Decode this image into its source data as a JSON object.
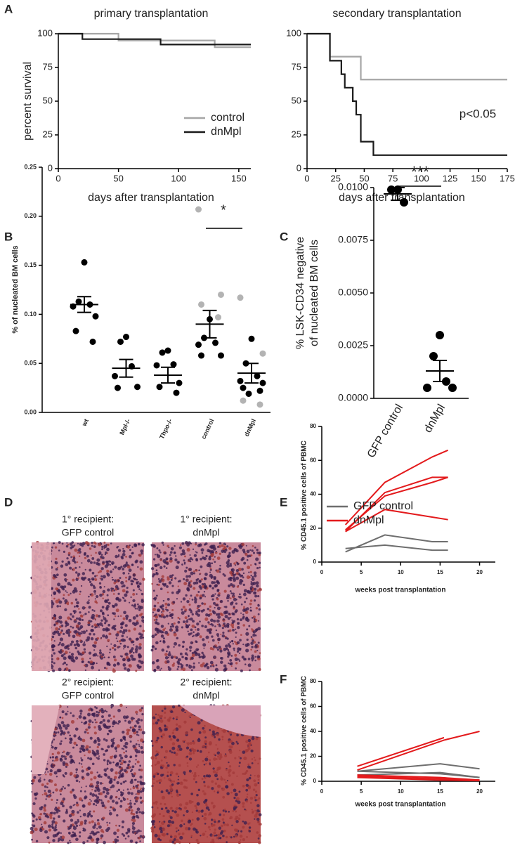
{
  "panel_labels": [
    "A",
    "B",
    "C",
    "D",
    "E",
    "F"
  ],
  "histology": {
    "captions": [
      [
        "1° recipient:",
        "GFP control"
      ],
      [
        "1° recipient:",
        "dnMpl"
      ],
      [
        "2° recipient:",
        "GFP control"
      ],
      [
        "2° recipient:",
        "dnMpl"
      ]
    ]
  },
  "chart_data": [
    {
      "type": "step",
      "title": "primary transplantation",
      "ylabel": "percent survival",
      "xlabel": "days after transplantation",
      "xlim": [
        0,
        160
      ],
      "xticks": [
        0,
        50,
        100,
        150
      ],
      "ylim": [
        0,
        100
      ],
      "yticks": [
        0,
        25,
        50,
        75,
        100
      ],
      "grid": false,
      "legend": "center right",
      "series": [
        {
          "name": "control",
          "color": "#a6a6a6",
          "x": [
            0,
            50,
            130,
            160
          ],
          "values": [
            100,
            95,
            90,
            90
          ]
        },
        {
          "name": "dnMpl",
          "color": "#1a1a1a",
          "x": [
            0,
            20,
            85,
            160
          ],
          "values": [
            100,
            96,
            92,
            92
          ]
        }
      ]
    },
    {
      "type": "step",
      "title": "secondary transplantation",
      "xlabel": "days after transplantation",
      "annotation": "p<0.05",
      "xlim": [
        0,
        175
      ],
      "xticks": [
        0,
        25,
        50,
        75,
        100,
        125,
        150,
        175
      ],
      "ylim": [
        0,
        100
      ],
      "yticks": [
        0,
        25,
        50,
        75,
        100
      ],
      "grid": false,
      "series": [
        {
          "color": "#a6a6a6",
          "x": [
            0,
            20,
            47,
            175
          ],
          "values": [
            100,
            83,
            66,
            66
          ]
        },
        {
          "color": "#1a1a1a",
          "x": [
            0,
            20,
            30,
            33,
            40,
            43,
            47,
            58,
            175
          ],
          "values": [
            100,
            80,
            70,
            60,
            50,
            40,
            20,
            10,
            10
          ]
        }
      ]
    },
    {
      "type": "dot",
      "ylabel": "% of nucleated BM cells",
      "annotation": "*",
      "categories": [
        "wt",
        "Mpl-/-",
        "Thpo-/-",
        "control",
        "dnMpl"
      ],
      "ylim": [
        0,
        0.25
      ],
      "yticks": [
        {
          "value": 0,
          "label": "0.00"
        },
        0.05,
        {
          "value": 0.1,
          "label": "0.10"
        },
        0.15,
        {
          "value": 0.2,
          "label": "0.20"
        },
        0.25
      ],
      "grid": false,
      "series": [
        {
          "color": "#000000",
          "values": [
            [
              0.153,
              0.113,
              0.11,
              0.108,
              0.098,
              0.083,
              0.072
            ],
            [
              0.077,
              0.072,
              0.047,
              0.037,
              0.026,
              0.025
            ],
            [
              0.063,
              0.061,
              0.049,
              0.048,
              0.03,
              0.026,
              0.02
            ],
            [
              0.095,
              0.076,
              0.071,
              0.069,
              0.058,
              0.058
            ],
            [
              0.075,
              0.05,
              0.037,
              0.032,
              0.03,
              0.025,
              0.022,
              0.019
            ]
          ]
        },
        {
          "color": "#b3b3b3",
          "values": [
            [],
            [],
            [],
            [
              0.207,
              0.12,
              0.11,
              0.097
            ],
            [
              0.117,
              0.06,
              0.012,
              0.008
            ]
          ]
        }
      ],
      "mean": [
        0.11,
        0.045,
        0.038,
        0.09,
        0.04
      ],
      "sem": [
        0.008,
        0.009,
        0.008,
        0.014,
        0.01
      ]
    },
    {
      "type": "dot",
      "ylabel": [
        "% LSK-CD34 negative",
        "of nucleated BM cells"
      ],
      "annotation": "***",
      "categories": [
        "GFP control",
        "dnMpl"
      ],
      "ylim": [
        0,
        0.01
      ],
      "yticks": [
        {
          "value": 0,
          "label": "0.0000"
        },
        0.0025,
        {
          "value": 0.005,
          "label": "0.0050"
        },
        0.0075,
        {
          "value": 0.01,
          "label": "0.0100"
        }
      ],
      "grid": false,
      "series": [
        {
          "color": "#000000",
          "values": [
            [
              0.0099,
              0.0099,
              0.0093
            ],
            [
              0.003,
              0.002,
              0.0008,
              0.0005,
              0.0005
            ]
          ]
        }
      ],
      "mean": [
        0.0097,
        0.0013
      ],
      "sem": [
        0.0003,
        0.0005
      ]
    },
    {
      "type": "line",
      "ylabel": "% CD45.1 positive cells of PBMC",
      "xlabel": "weeks post transplantation",
      "xlim": [
        0,
        22
      ],
      "xticks": [
        0,
        5,
        10,
        15,
        20
      ],
      "ylim": [
        0,
        80
      ],
      "yticks": [
        0,
        20,
        40,
        60,
        80
      ],
      "grid": false,
      "legend": "upper left",
      "series": [
        {
          "name": "GFP control",
          "color": "#6e6e6e",
          "lines": [
            {
              "x": [
                3,
                8,
                14,
                16
              ],
              "values": [
                8,
                10,
                7,
                7
              ]
            },
            {
              "x": [
                3,
                8,
                14,
                16
              ],
              "values": [
                6,
                16,
                12,
                12
              ]
            }
          ]
        },
        {
          "name": "dnMpl",
          "color": "#e31a1c",
          "lines": [
            {
              "x": [
                3,
                8,
                14,
                16
              ],
              "values": [
                22,
                47,
                62,
                66
              ]
            },
            {
              "x": [
                3,
                8,
                14,
                16
              ],
              "values": [
                18,
                41,
                50,
                50
              ]
            },
            {
              "x": [
                3,
                8,
                14,
                16
              ],
              "values": [
                19,
                39,
                47,
                50
              ]
            },
            {
              "x": [
                3,
                8,
                16
              ],
              "values": [
                18,
                31,
                25
              ]
            }
          ]
        }
      ]
    },
    {
      "type": "line",
      "ylabel": "% CD45.1 positive cells of PBMC",
      "xlabel": "weeks post transplantation",
      "xlim": [
        0,
        22
      ],
      "xticks": [
        0,
        5,
        10,
        15,
        20
      ],
      "ylim": [
        0,
        80
      ],
      "yticks": [
        0,
        20,
        40,
        60,
        80
      ],
      "grid": false,
      "series": [
        {
          "color": "#6e6e6e",
          "lines": [
            {
              "x": [
                4.5,
                15,
                20
              ],
              "values": [
                8,
                14,
                10
              ]
            },
            {
              "x": [
                4.5,
                15,
                20
              ],
              "values": [
                8,
                6,
                3
              ]
            },
            {
              "x": [
                4.5,
                15,
                20
              ],
              "values": [
                5,
                7,
                3
              ]
            }
          ]
        },
        {
          "color": "#e31a1c",
          "lines": [
            {
              "x": [
                4.5,
                15.5
              ],
              "values": [
                12,
                35
              ]
            },
            {
              "x": [
                4.5,
                15.5,
                20
              ],
              "values": [
                9,
                33,
                40
              ]
            },
            {
              "x": [
                4.5,
                15,
                20
              ],
              "values": [
                5,
                3,
                1
              ]
            },
            {
              "x": [
                4.5,
                15,
                20
              ],
              "values": [
                4,
                2,
                1
              ]
            },
            {
              "x": [
                4.5,
                15,
                20
              ],
              "values": [
                3,
                1,
                0.5
              ]
            }
          ]
        }
      ]
    }
  ]
}
